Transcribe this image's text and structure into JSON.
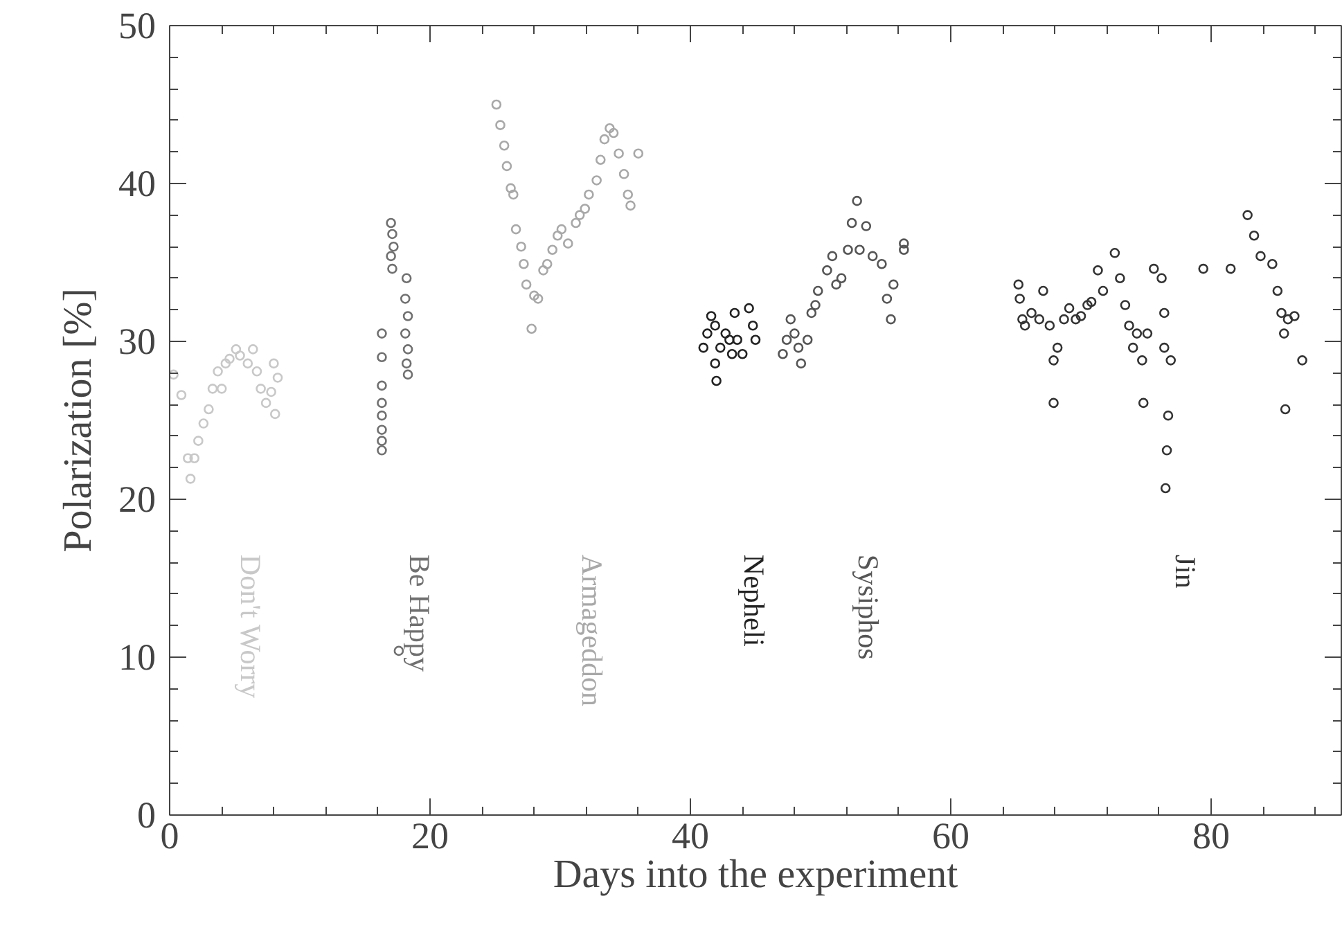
{
  "chart_data": {
    "type": "scatter",
    "xlabel": "Days into the experiment",
    "ylabel": "Polarization [%]",
    "xlim": [
      0,
      90
    ],
    "ylim": [
      0,
      50
    ],
    "xticks": [
      0,
      20,
      40,
      60,
      80
    ],
    "yticks": [
      0,
      10,
      20,
      30,
      40,
      50
    ],
    "grid": false,
    "marker": "circle",
    "series": [
      {
        "name": "Don't Worry",
        "color": "#c8c8c8",
        "x": [
          0.3,
          0.9,
          1.4,
          1.6,
          1.9,
          2.2,
          2.6,
          3.0,
          3.3,
          3.7,
          4.0,
          4.3,
          4.6,
          5.1,
          5.4,
          6.0,
          6.4,
          6.7,
          7.0,
          7.4,
          7.8,
          8.1,
          8.3,
          8.0
        ],
        "values": [
          27.9,
          26.6,
          22.6,
          21.3,
          22.6,
          23.7,
          24.8,
          25.7,
          27.0,
          28.1,
          27.0,
          28.6,
          28.9,
          29.5,
          29.1,
          28.6,
          29.5,
          28.1,
          27.0,
          26.1,
          26.8,
          25.4,
          27.7,
          28.6
        ]
      },
      {
        "name": "Be Happy",
        "color": "#707070",
        "x": [
          16.3,
          16.3,
          16.3,
          16.3,
          16.3,
          16.3,
          16.3,
          16.3,
          17.0,
          17.1,
          17.2,
          17.0,
          17.1,
          18.2,
          18.1,
          18.3,
          18.1,
          18.3,
          18.2,
          18.3,
          17.6
        ],
        "values": [
          30.5,
          29.0,
          27.2,
          26.1,
          25.3,
          24.4,
          23.7,
          23.1,
          37.5,
          36.8,
          36.0,
          35.4,
          34.6,
          34.0,
          32.7,
          31.6,
          30.5,
          29.5,
          28.6,
          27.9,
          10.4
        ]
      },
      {
        "name": "Armageddon",
        "color": "#a8a8a8",
        "x": [
          25.1,
          25.4,
          25.7,
          25.9,
          26.2,
          26.4,
          26.6,
          27.0,
          27.2,
          27.4,
          28.0,
          28.3,
          27.8,
          28.7,
          29.0,
          29.4,
          29.8,
          30.1,
          30.6,
          31.2,
          31.5,
          31.9,
          32.2,
          32.8,
          33.1,
          33.4,
          33.8,
          34.1,
          34.5,
          34.9,
          35.2,
          35.4,
          36.0
        ],
        "values": [
          45.0,
          43.7,
          42.4,
          41.1,
          39.7,
          39.3,
          37.1,
          36.0,
          34.9,
          33.6,
          32.9,
          32.7,
          30.8,
          34.5,
          34.9,
          35.8,
          36.7,
          37.1,
          36.2,
          37.5,
          38.0,
          38.4,
          39.3,
          40.2,
          41.5,
          42.8,
          43.5,
          43.2,
          41.9,
          40.6,
          39.3,
          38.6,
          41.9
        ]
      },
      {
        "name": "Nepheli",
        "color": "#222222",
        "x": [
          41.0,
          41.3,
          41.6,
          41.9,
          41.9,
          42.0,
          42.3,
          42.7,
          43.0,
          43.2,
          43.4,
          43.6,
          44.0,
          44.5,
          44.8,
          45.0
        ],
        "values": [
          29.6,
          30.5,
          31.6,
          31.0,
          28.6,
          27.5,
          29.6,
          30.5,
          30.1,
          29.2,
          31.8,
          30.1,
          29.2,
          32.1,
          31.0,
          30.1
        ]
      },
      {
        "name": "Sysiphos",
        "color": "#555555",
        "x": [
          47.1,
          47.4,
          47.7,
          48.0,
          48.3,
          48.5,
          49.0,
          49.3,
          49.6,
          49.8,
          50.5,
          50.9,
          51.2,
          51.6,
          52.1,
          52.4,
          52.8,
          53.0,
          53.5,
          54.0,
          54.7,
          55.1,
          55.4,
          55.6,
          56.4,
          56.4
        ],
        "values": [
          29.2,
          30.1,
          31.4,
          30.5,
          29.6,
          28.6,
          30.1,
          31.8,
          32.3,
          33.2,
          34.5,
          35.4,
          33.6,
          34.0,
          35.8,
          37.5,
          38.9,
          35.8,
          37.3,
          35.4,
          34.9,
          32.7,
          31.4,
          33.6,
          36.2,
          35.8
        ]
      },
      {
        "name": "Jin",
        "color": "#333333",
        "x": [
          65.2,
          65.3,
          65.5,
          65.7,
          66.2,
          66.8,
          67.1,
          67.6,
          67.9,
          67.9,
          68.2,
          68.7,
          69.1,
          69.6,
          70.0,
          70.5,
          70.8,
          71.3,
          71.7,
          72.6,
          73.0,
          73.4,
          73.7,
          74.0,
          74.3,
          74.7,
          74.8,
          75.1,
          75.6,
          76.2,
          76.4,
          76.4,
          76.7,
          76.6,
          76.5,
          76.9,
          79.4,
          81.5,
          82.8,
          83.3,
          83.8,
          84.7,
          85.1,
          85.4,
          85.6,
          85.7,
          85.9,
          86.4,
          87.0
        ],
        "values": [
          33.6,
          32.7,
          31.4,
          31.0,
          31.8,
          31.4,
          33.2,
          31.0,
          28.8,
          26.1,
          29.6,
          31.4,
          32.1,
          31.4,
          31.6,
          32.3,
          32.5,
          34.5,
          33.2,
          35.6,
          34.0,
          32.3,
          31.0,
          29.6,
          30.5,
          28.8,
          26.1,
          30.5,
          34.6,
          34.0,
          31.8,
          29.6,
          25.3,
          23.1,
          20.7,
          28.8,
          34.6,
          34.6,
          38.0,
          36.7,
          35.4,
          34.9,
          33.2,
          31.8,
          30.5,
          25.7,
          31.4,
          31.6,
          28.8
        ]
      }
    ]
  }
}
